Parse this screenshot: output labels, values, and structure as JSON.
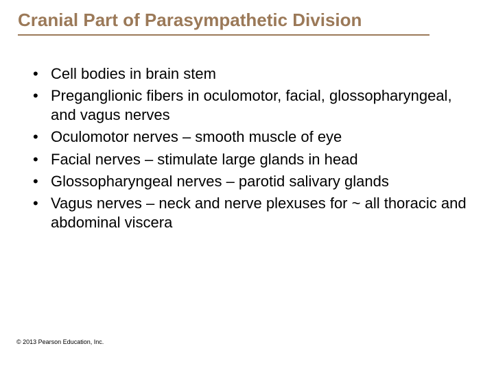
{
  "title": "Cranial Part of Parasympathetic Division",
  "title_color": "#9b7958",
  "rule_color": "#9b7958",
  "background_color": "#ffffff",
  "body_text_color": "#000000",
  "title_fontsize": 26,
  "body_fontsize": 22,
  "bullets": [
    "Cell bodies in brain stem",
    "Preganglionic fibers in oculomotor, facial, glossopharyngeal, and vagus nerves",
    "Oculomotor nerves – smooth muscle of eye",
    "Facial nerves – stimulate large glands in head",
    "Glossopharyngeal nerves – parotid salivary glands",
    "Vagus nerves – neck and nerve plexuses for ~ all thoracic and abdominal viscera"
  ],
  "copyright": "© 2013 Pearson Education, Inc."
}
